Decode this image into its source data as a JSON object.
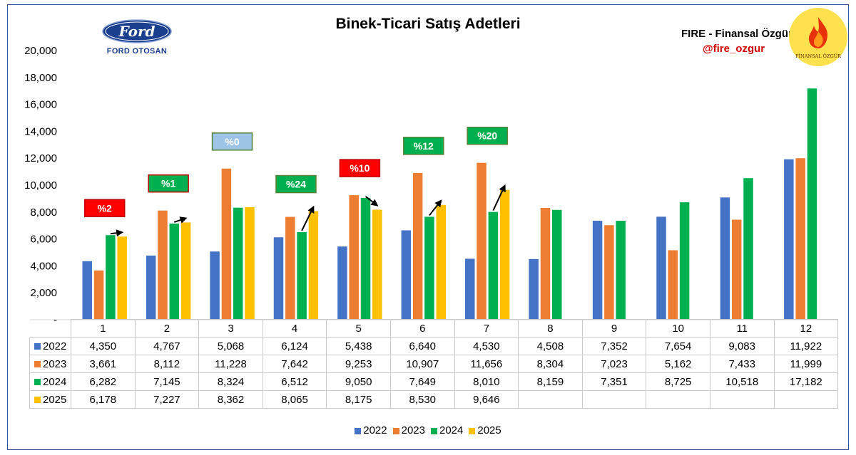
{
  "header": {
    "title": "Binek-Ticari Satış Adetleri",
    "ford_logo_text": "Ford",
    "ford_otosan_text": "FORD OTOSAN",
    "fire_name": "FIRE - Finansal Özgür",
    "fire_handle": "@fire_ozgur",
    "fire_logo_text": "FİNANSAL ÖZGÜR"
  },
  "chart_data": {
    "type": "bar",
    "title": "Binek-Ticari Satış Adetleri",
    "xlabel": "",
    "ylabel": "",
    "categories": [
      "1",
      "2",
      "3",
      "4",
      "5",
      "6",
      "7",
      "8",
      "9",
      "10",
      "11",
      "12"
    ],
    "ylim": [
      0,
      20000
    ],
    "yticks": [
      "-",
      "2,000",
      "4,000",
      "6,000",
      "8,000",
      "10,000",
      "12,000",
      "14,000",
      "16,000",
      "18,000",
      "20,000"
    ],
    "grid": false,
    "legend_position": "bottom",
    "series": [
      {
        "name": "2022",
        "color": "#4472c4",
        "values": [
          4350,
          4767,
          5068,
          6124,
          5438,
          6640,
          4530,
          4508,
          7352,
          7654,
          9083,
          11922
        ],
        "labels": [
          "4,350",
          "4,767",
          "5,068",
          "6,124",
          "5,438",
          "6,640",
          "4,530",
          "4,508",
          "7,352",
          "7,654",
          "9,083",
          "11,922"
        ]
      },
      {
        "name": "2023",
        "color": "#ed7d31",
        "values": [
          3661,
          8112,
          11228,
          7642,
          9253,
          10907,
          11656,
          8304,
          7023,
          5162,
          7433,
          11999
        ],
        "labels": [
          "3,661",
          "8,112",
          "11,228",
          "7,642",
          "9,253",
          "10,907",
          "11,656",
          "8,304",
          "7,023",
          "5,162",
          "7,433",
          "11,999"
        ]
      },
      {
        "name": "2024",
        "color": "#00b050",
        "values": [
          6282,
          7145,
          8324,
          6512,
          9050,
          7649,
          8010,
          8159,
          7351,
          8725,
          10518,
          17182
        ],
        "labels": [
          "6,282",
          "7,145",
          "8,324",
          "6,512",
          "9,050",
          "7,649",
          "8,010",
          "8,159",
          "7,351",
          "8,725",
          "10,518",
          "17,182"
        ]
      },
      {
        "name": "2025",
        "color": "#ffc000",
        "values": [
          6178,
          7227,
          8362,
          8065,
          8175,
          8530,
          9646,
          null,
          null,
          null,
          null,
          null
        ],
        "labels": [
          "6,178",
          "7,227",
          "8,362",
          "8,065",
          "8,175",
          "8,530",
          "9,646",
          "",
          "",
          "",
          "",
          ""
        ]
      }
    ],
    "annotations": [
      {
        "category": "1",
        "text": "%2",
        "fill": "#ff0000",
        "text_color": "#ffffff",
        "border": "#c00000",
        "arrow_from": 6282,
        "arrow_to": 6178
      },
      {
        "category": "2",
        "text": "%1",
        "fill": "#00b050",
        "text_color": "#ffffff",
        "border": "#c00000",
        "arrow_from": 7145,
        "arrow_to": 7227
      },
      {
        "category": "3",
        "text": "%0",
        "fill": "#9dc3e6",
        "text_color": "#ffffff",
        "border": "#548235",
        "arrow_from": null,
        "arrow_to": null
      },
      {
        "category": "4",
        "text": "%24",
        "fill": "#00b050",
        "text_color": "#ffffff",
        "border": "#548235",
        "arrow_from": 6512,
        "arrow_to": 8065
      },
      {
        "category": "5",
        "text": "%10",
        "fill": "#ff0000",
        "text_color": "#ffffff",
        "border": "#c00000",
        "arrow_from": 9050,
        "arrow_to": 8175
      },
      {
        "category": "6",
        "text": "%12",
        "fill": "#00b050",
        "text_color": "#ffffff",
        "border": "#548235",
        "arrow_from": 7649,
        "arrow_to": 8530
      },
      {
        "category": "7",
        "text": "%20",
        "fill": "#00b050",
        "text_color": "#ffffff",
        "border": "#548235",
        "arrow_from": 8010,
        "arrow_to": 9646
      }
    ]
  }
}
